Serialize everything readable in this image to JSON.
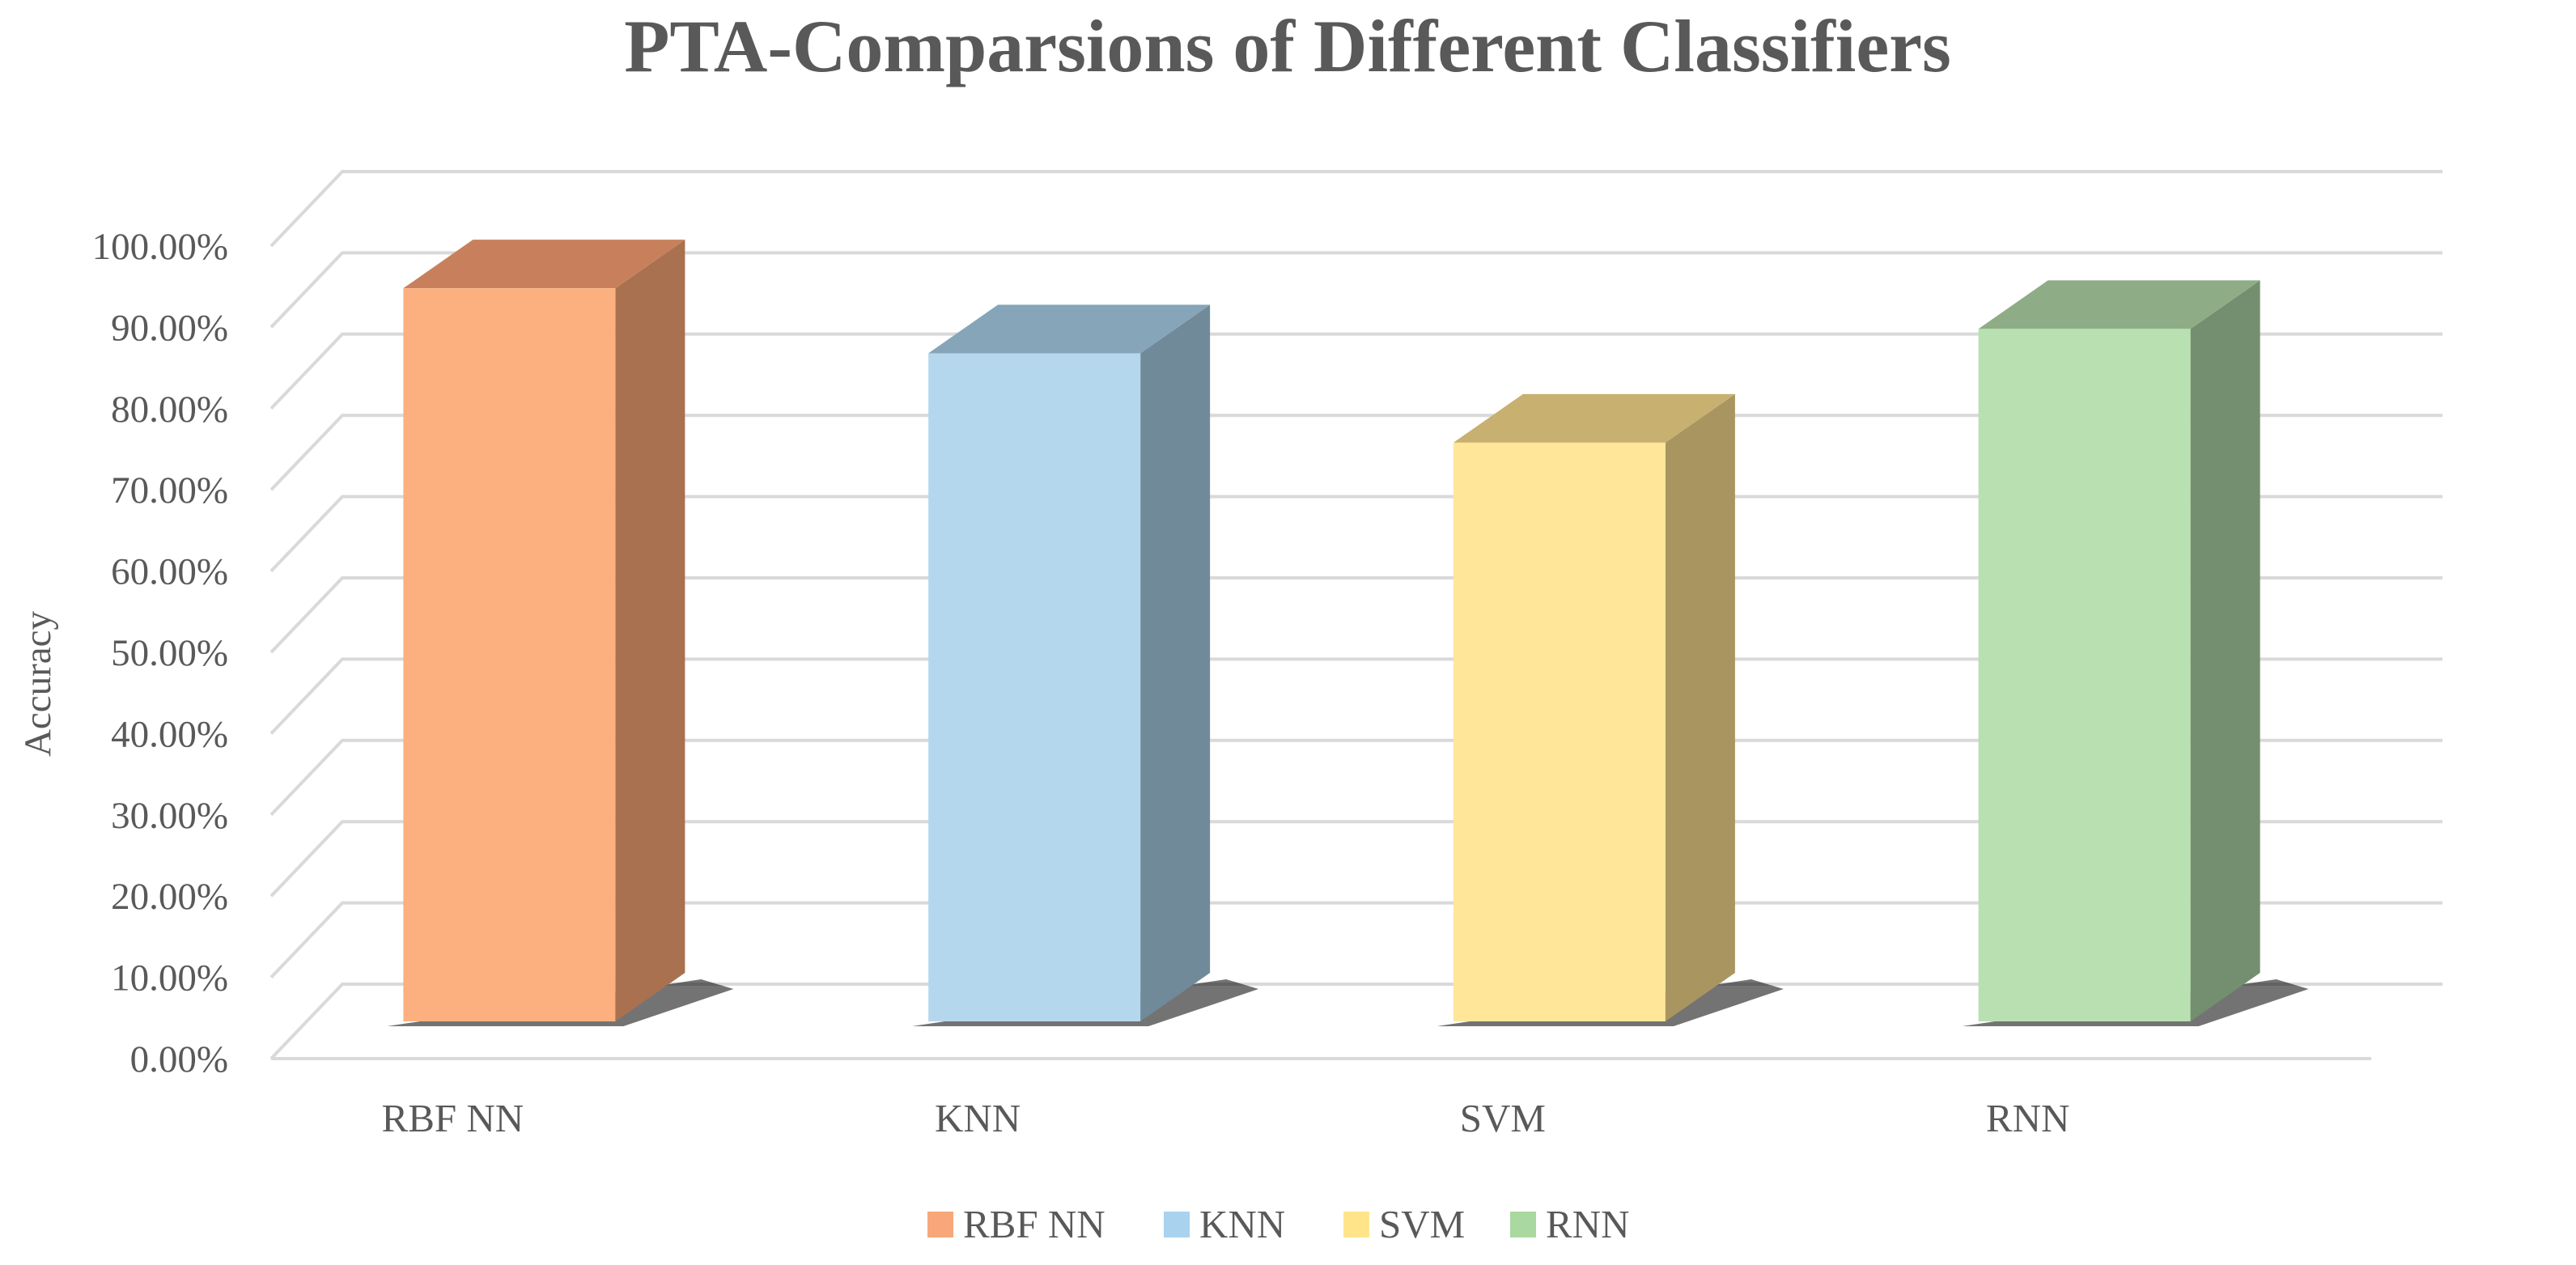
{
  "chart_data": {
    "type": "bar",
    "title": "PTA-Comparsions of Different Classifiers",
    "xlabel": "",
    "ylabel": "Accuracy",
    "categories": [
      "RBF NN",
      "KNN",
      "SVM",
      "RNN"
    ],
    "series": [
      {
        "name": "RBF NN",
        "values": [
          0.96,
          null,
          null,
          null
        ]
      },
      {
        "name": "KNN",
        "values": [
          null,
          0.88,
          null,
          null
        ]
      },
      {
        "name": "SVM",
        "values": [
          null,
          null,
          0.77,
          null
        ]
      },
      {
        "name": "RNN",
        "values": [
          null,
          null,
          null,
          0.91
        ]
      }
    ],
    "values": [
      0.96,
      0.88,
      0.77,
      0.91
    ],
    "ylim": [
      0,
      1.0
    ],
    "ytick_labels": [
      "0.00%",
      "10.00%",
      "20.00%",
      "30.00%",
      "40.00%",
      "50.00%",
      "60.00%",
      "70.00%",
      "80.00%",
      "90.00%",
      "100.00%"
    ],
    "grid": true,
    "style": "3d-column",
    "legend": {
      "placement": "bottom",
      "entries": [
        "RBF NN",
        "KNN",
        "SVM",
        "RNN"
      ]
    },
    "colors": {
      "front": [
        "#FCB07F",
        "#B4D7EE",
        "#FFE699",
        "#B8E0B0"
      ],
      "side": [
        "#A9714F",
        "#718A9A",
        "#A99560",
        "#748F6F"
      ],
      "top": [
        "#C8805C",
        "#87A5B9",
        "#C8B070",
        "#8EAD87"
      ],
      "legend": [
        "#F7A77A",
        "#A9D2EE",
        "#FFE48A",
        "#A9D8A0"
      ]
    }
  }
}
